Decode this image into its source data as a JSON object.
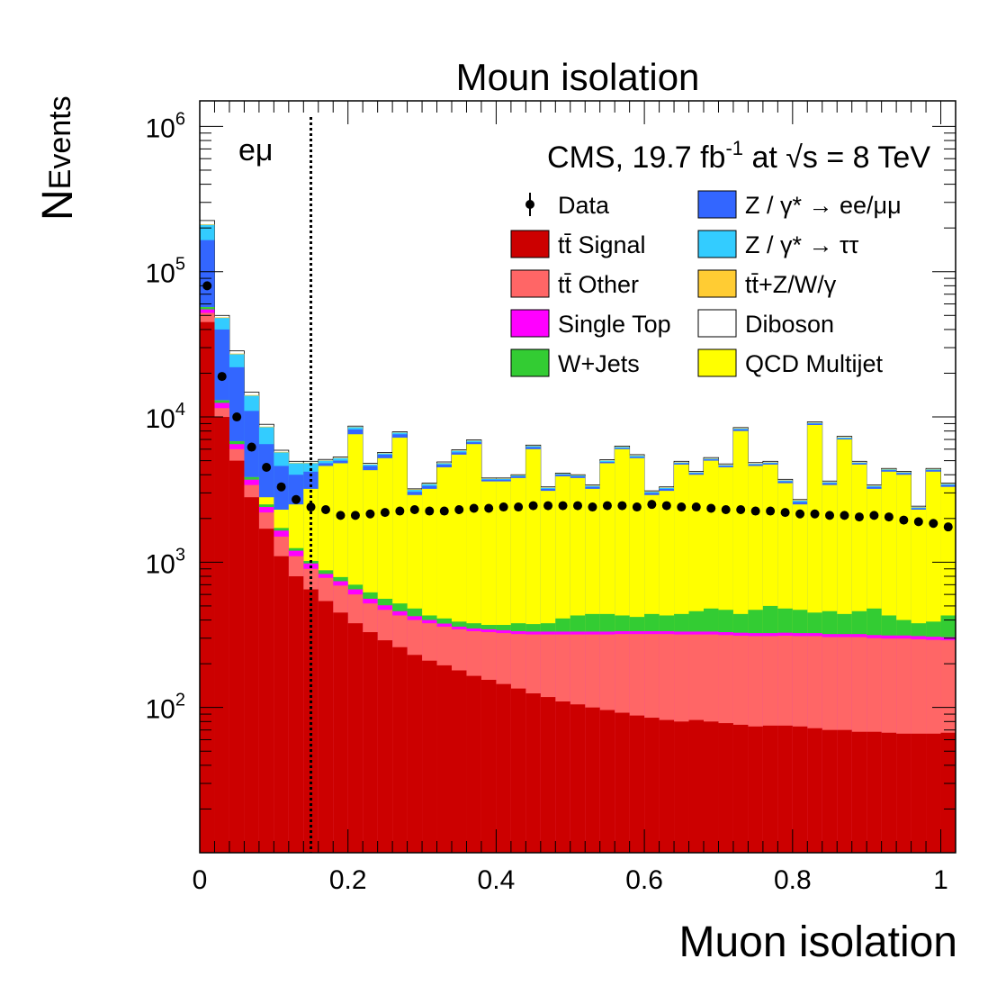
{
  "chart_data": {
    "type": "bar",
    "stacked": true,
    "title": "Moun isolation",
    "xlabel": "Muon isolation",
    "ylabel": "N",
    "ylabel_sub": "Events",
    "log_y": true,
    "xlim": [
      0,
      1.02
    ],
    "ylim": [
      10,
      1500000
    ],
    "bin_width": 0.02,
    "x_ticks": [
      "0",
      "0.2",
      "0.4",
      "0.6",
      "0.8",
      "1"
    ],
    "x_tick_values": [
      0,
      0.2,
      0.4,
      0.6,
      0.8,
      1.0
    ],
    "y_ticks": [
      {
        "value": 100,
        "base": "10",
        "exp": "2"
      },
      {
        "value": 1000,
        "base": "10",
        "exp": "3"
      },
      {
        "value": 10000,
        "base": "10",
        "exp": "4"
      },
      {
        "value": 100000,
        "base": "10",
        "exp": "5"
      },
      {
        "value": 1000000,
        "base": "10",
        "exp": "6"
      }
    ],
    "channel_label": "eμ",
    "cms_label": {
      "main": "CMS, 19.7 fb",
      "sup": "-1",
      "mid": " at ",
      "sqrt": "√",
      "s": "s",
      "end": " =  8 TeV"
    },
    "cut_line_x": 0.15,
    "legend": [
      {
        "label": "Data",
        "color": "#000000",
        "marker": "point"
      },
      {
        "label": "Z / γ* → ee/μμ",
        "color": "#3366ff"
      },
      {
        "label": "tt̄ Signal",
        "color": "#cc0000"
      },
      {
        "label": "Z / γ* → ττ",
        "color": "#33ccff"
      },
      {
        "label": "tt̄ Other",
        "color": "#ff6666"
      },
      {
        "label": "tt̄+Z/W/γ",
        "color": "#ffcc33"
      },
      {
        "label": "Single Top",
        "color": "#ff00ff"
      },
      {
        "label": "Diboson",
        "color": "#ffffff"
      },
      {
        "label": "W+Jets",
        "color": "#33cc33"
      },
      {
        "label": "QCD Multijet",
        "color": "#ffff00"
      }
    ],
    "stack_order": [
      "tt̄ Signal",
      "tt̄ Other",
      "Single Top",
      "W+Jets",
      "QCD Multijet",
      "Z / γ* → ee/μμ",
      "Z / γ* → ττ",
      "tt̄+Z/W/γ",
      "Diboson"
    ],
    "bin_edges_low": [
      0,
      0.02,
      0.04,
      0.06,
      0.08,
      0.1,
      0.12,
      0.14,
      0.16,
      0.18,
      0.2,
      0.22,
      0.24,
      0.26,
      0.28,
      0.3,
      0.32,
      0.34,
      0.36,
      0.38,
      0.4,
      0.42,
      0.44,
      0.46,
      0.48,
      0.5,
      0.52,
      0.54,
      0.56,
      0.58,
      0.6,
      0.62,
      0.64,
      0.66,
      0.68,
      0.7,
      0.72,
      0.74,
      0.76,
      0.78,
      0.8,
      0.82,
      0.84,
      0.86,
      0.88,
      0.9,
      0.92,
      0.94,
      0.96,
      0.98,
      1.0
    ],
    "cumulative_top": {
      "signal": [
        45000,
        10000,
        5000,
        2800,
        1700,
        1100,
        800,
        650,
        540,
        450,
        380,
        330,
        290,
        260,
        230,
        210,
        195,
        180,
        165,
        155,
        145,
        135,
        125,
        118,
        110,
        105,
        100,
        96,
        92,
        88,
        85,
        82,
        80,
        82,
        80,
        78,
        76,
        74,
        75,
        75,
        74,
        72,
        70,
        70,
        68,
        68,
        67,
        66,
        66,
        66,
        67
      ],
      "other": [
        52000,
        11500,
        6000,
        3400,
        2200,
        1500,
        1100,
        900,
        780,
        690,
        600,
        520,
        470,
        430,
        400,
        380,
        360,
        345,
        335,
        330,
        325,
        320,
        318,
        318,
        318,
        318,
        318,
        318,
        320,
        320,
        320,
        320,
        318,
        318,
        318,
        315,
        312,
        310,
        310,
        312,
        310,
        310,
        305,
        305,
        305,
        300,
        298,
        298,
        295,
        292,
        290
      ],
      "singletop": [
        55000,
        12500,
        6500,
        3700,
        2400,
        1650,
        1200,
        980,
        830,
        740,
        650,
        560,
        505,
        460,
        425,
        400,
        378,
        360,
        350,
        345,
        340,
        335,
        333,
        333,
        333,
        333,
        333,
        333,
        335,
        335,
        335,
        335,
        333,
        333,
        333,
        330,
        327,
        325,
        325,
        327,
        325,
        325,
        320,
        320,
        320,
        315,
        313,
        313,
        310,
        307,
        305
      ],
      "wjets": [
        57000,
        13000,
        6800,
        3850,
        2500,
        1720,
        1250,
        1020,
        880,
        790,
        700,
        620,
        560,
        520,
        480,
        430,
        410,
        390,
        380,
        370,
        370,
        380,
        375,
        380,
        410,
        430,
        440,
        440,
        430,
        420,
        440,
        430,
        440,
        460,
        480,
        470,
        440,
        470,
        500,
        480,
        470,
        450,
        460,
        440,
        460,
        480,
        430,
        400,
        380,
        390,
        430
      ],
      "qcd": [
        57000,
        13000,
        6800,
        3850,
        2800,
        2300,
        2500,
        3200,
        4600,
        4800,
        7600,
        4300,
        5200,
        7200,
        2900,
        3200,
        4500,
        5500,
        6500,
        3600,
        3600,
        3800,
        6000,
        3100,
        3900,
        3800,
        3200,
        4800,
        6000,
        5200,
        2900,
        3100,
        4700,
        4000,
        5000,
        4500,
        8000,
        4600,
        4700,
        3500,
        2500,
        8800,
        3400,
        7000,
        4700,
        3200,
        4200,
        4000,
        2300,
        4200,
        3300
      ],
      "zee": [
        165000,
        40000,
        22000,
        11000,
        6500,
        4600,
        4000,
        4200,
        4800,
        5000,
        8200,
        4600,
        5500,
        7600,
        3050,
        3350,
        4700,
        5700,
        6700,
        3700,
        3700,
        3900,
        6200,
        3200,
        4000,
        3900,
        3300,
        4900,
        6100,
        5300,
        3000,
        3200,
        4800,
        4100,
        5100,
        4600,
        8200,
        4700,
        4800,
        3600,
        2600,
        9000,
        3500,
        7100,
        4800,
        3300,
        4300,
        4100,
        2350,
        4300,
        3400
      ],
      "ztautau": [
        210000,
        48000,
        27000,
        14000,
        8500,
        5700,
        4800,
        4800,
        5000,
        5200,
        8500,
        4700,
        5600,
        7800,
        3150,
        3450,
        4800,
        5850,
        6850,
        3750,
        3750,
        3950,
        6300,
        3250,
        4050,
        3950,
        3350,
        5000,
        6200,
        5400,
        3050,
        3250,
        4850,
        4150,
        5150,
        4650,
        8300,
        4750,
        4850,
        3650,
        2650,
        9100,
        3550,
        7200,
        4850,
        3350,
        4350,
        4150,
        2380,
        4350,
        3450
      ],
      "ttv": [
        212000,
        48500,
        27300,
        14150,
        8580,
        5750,
        4840,
        4840,
        5030,
        5230,
        8540,
        4720,
        5630,
        7830,
        3170,
        3470,
        4830,
        5880,
        6880,
        3770,
        3770,
        3970,
        6330,
        3270,
        4070,
        3970,
        3370,
        5020,
        6230,
        5430,
        3070,
        3270,
        4880,
        4170,
        5180,
        4680,
        8350,
        4780,
        4880,
        3670,
        2670,
        9150,
        3570,
        7250,
        4880,
        3370,
        4380,
        4180,
        2400,
        4380,
        3470
      ],
      "diboson": [
        225000,
        50000,
        28500,
        14800,
        8900,
        5900,
        4950,
        4950,
        5100,
        5300,
        8650,
        4800,
        5700,
        7900,
        3200,
        3500,
        4900,
        5950,
        6950,
        3800,
        3800,
        4000,
        6400,
        3300,
        4100,
        4000,
        3400,
        5080,
        6300,
        5500,
        3100,
        3300,
        4950,
        4220,
        5250,
        4750,
        8450,
        4850,
        4950,
        3720,
        2700,
        9250,
        3620,
        7350,
        4950,
        3400,
        4420,
        4220,
        2430,
        4420,
        3510
      ]
    },
    "data": {
      "x": [
        0.01,
        0.03,
        0.05,
        0.07,
        0.09,
        0.11,
        0.13,
        0.15,
        0.17,
        0.19,
        0.21,
        0.23,
        0.25,
        0.27,
        0.29,
        0.31,
        0.33,
        0.35,
        0.37,
        0.39,
        0.41,
        0.43,
        0.45,
        0.47,
        0.49,
        0.51,
        0.53,
        0.55,
        0.57,
        0.59,
        0.61,
        0.63,
        0.65,
        0.67,
        0.69,
        0.71,
        0.73,
        0.75,
        0.77,
        0.79,
        0.81,
        0.83,
        0.85,
        0.87,
        0.89,
        0.91,
        0.93,
        0.95,
        0.97,
        0.99,
        1.01
      ],
      "y": [
        80000,
        19000,
        10000,
        6200,
        4500,
        3300,
        2700,
        2400,
        2300,
        2100,
        2100,
        2150,
        2200,
        2250,
        2300,
        2250,
        2250,
        2300,
        2350,
        2350,
        2400,
        2400,
        2450,
        2450,
        2450,
        2450,
        2400,
        2450,
        2450,
        2400,
        2500,
        2450,
        2400,
        2400,
        2350,
        2300,
        2300,
        2250,
        2250,
        2200,
        2150,
        2150,
        2100,
        2100,
        2050,
        2100,
        2050,
        1950,
        1900,
        1850,
        1750
      ]
    }
  }
}
